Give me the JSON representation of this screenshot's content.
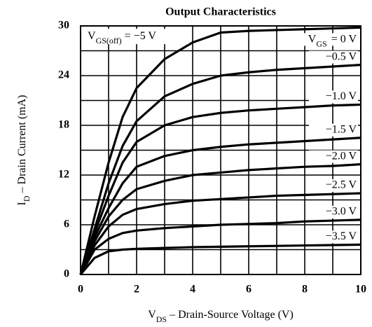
{
  "chart_data": {
    "type": "line",
    "title": "Output Characteristics",
    "annotation": {
      "main": "V",
      "sub": "GS(off)",
      "rest": " = −5 V"
    },
    "series_symbol": {
      "main": "V",
      "sub": "GS"
    },
    "x_label": {
      "main": "V",
      "sub": "DS",
      "rest": " – Drain-Source Voltage (V)"
    },
    "y_label": {
      "main": "I",
      "sub": "D",
      "rest": " – Drain Current (mA)"
    },
    "x": [
      0,
      0.5,
      1,
      1.5,
      2,
      3,
      4,
      5,
      6,
      7,
      8,
      9,
      10
    ],
    "series": [
      {
        "name": "= 0 V",
        "color": "#000000",
        "values": [
          0,
          7,
          13.5,
          19,
          22.5,
          26,
          28,
          29.2,
          29.4,
          29.5,
          29.6,
          29.7,
          29.8
        ]
      },
      {
        "name": "−0.5 V",
        "color": "#000000",
        "values": [
          0,
          5.5,
          11,
          15.5,
          18.5,
          21.5,
          23,
          24,
          24.4,
          24.7,
          24.9,
          25.1,
          25.3
        ]
      },
      {
        "name": "−1.0 V",
        "color": "#000000",
        "values": [
          0,
          5,
          9.5,
          13.5,
          16,
          18,
          19,
          19.5,
          19.8,
          20,
          20.2,
          20.4,
          20.5
        ]
      },
      {
        "name": "−1.5 V",
        "color": "#000000",
        "values": [
          0,
          4.5,
          8,
          11,
          13,
          14.3,
          15,
          15.4,
          15.7,
          15.9,
          16.1,
          16.3,
          16.5
        ]
      },
      {
        "name": "−2.0 V",
        "color": "#000000",
        "values": [
          0,
          4,
          7,
          9,
          10.3,
          11.3,
          12,
          12.3,
          12.6,
          12.8,
          13,
          13.1,
          13.3
        ]
      },
      {
        "name": "−2.5 V",
        "color": "#000000",
        "values": [
          0,
          3.5,
          5.8,
          7.2,
          7.9,
          8.5,
          8.9,
          9.1,
          9.3,
          9.5,
          9.6,
          9.7,
          9.8
        ]
      },
      {
        "name": "−3.0 V",
        "color": "#000000",
        "values": [
          0,
          3,
          4.3,
          5,
          5.3,
          5.6,
          5.8,
          6,
          6.1,
          6.2,
          6.4,
          6.5,
          6.6
        ]
      },
      {
        "name": "−3.5 V",
        "color": "#000000",
        "values": [
          0,
          2,
          2.8,
          3,
          3.1,
          3.2,
          3.3,
          3.35,
          3.4,
          3.45,
          3.5,
          3.55,
          3.6
        ]
      }
    ],
    "xlim": [
      0,
      10
    ],
    "xticks": [
      0,
      2,
      4,
      6,
      8,
      10
    ],
    "xminor": [
      1,
      3,
      5,
      7,
      9
    ],
    "ylim": [
      0,
      30
    ],
    "yticks": [
      0,
      6,
      12,
      18,
      24,
      30
    ],
    "yminor": [
      3,
      9,
      15,
      21,
      27
    ],
    "grid": true
  }
}
